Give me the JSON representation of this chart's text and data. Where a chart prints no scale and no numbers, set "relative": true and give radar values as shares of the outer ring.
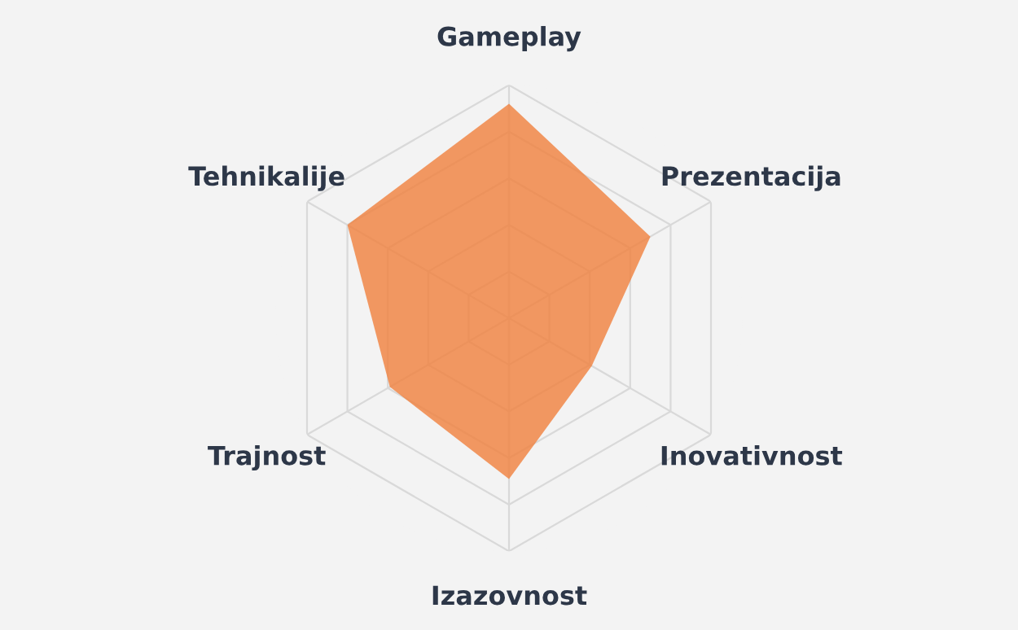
{
  "chart_data": {
    "type": "radar",
    "relative": true,
    "categories": [
      "Gameplay",
      "Prezentacija",
      "Inovativnost",
      "Izazovnost",
      "Trajnost",
      "Tehnikalije"
    ],
    "series": [
      {
        "color": "#f07f3c",
        "values": [
          0.92,
          0.7,
          0.41,
          0.69,
          0.59,
          0.8
        ]
      }
    ],
    "grid": true
  }
}
